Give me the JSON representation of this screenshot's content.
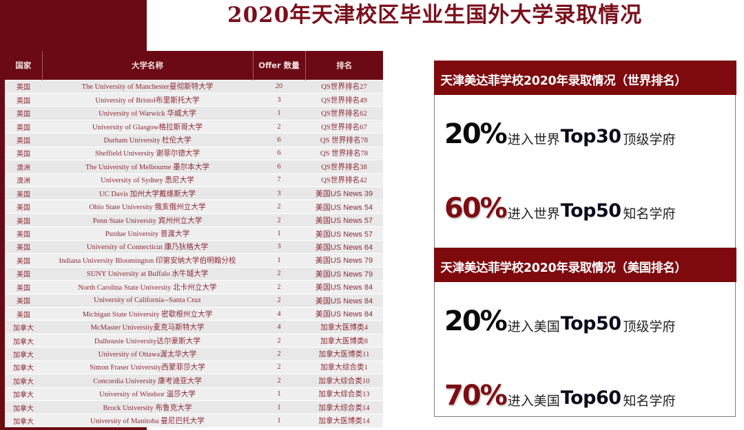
{
  "page": {
    "title": "2020年天津校区毕业生国外大学录取情况"
  },
  "table": {
    "headers": [
      "国家",
      "大学名称",
      "Offer 数量",
      "排名"
    ],
    "rows": [
      {
        "country": "英国",
        "university": "The University of Manchester曼彻斯特大学",
        "offers": "20",
        "rank": "QS世界排名27"
      },
      {
        "country": "英国",
        "university": "University of Bristol布里斯托大学",
        "offers": "3",
        "rank": "QS世界排名49"
      },
      {
        "country": "英国",
        "university": "University of Warwick 华威大学",
        "offers": "1",
        "rank": "QS世界排名62"
      },
      {
        "country": "英国",
        "university": "University of Glasgow格拉斯哥大学",
        "offers": "2",
        "rank": "QS世界排名67"
      },
      {
        "country": "英国",
        "university": "Durham University 杜伦大学",
        "offers": "6",
        "rank": "QS 世界排名78"
      },
      {
        "country": "英国",
        "university": "Sheffield University  谢菲尔德大学",
        "offers": "6",
        "rank": "QS 世界排名78"
      },
      {
        "country": "澳洲",
        "university": "The University of Melbourne 墨尔本大学",
        "offers": "6",
        "rank": "QS世界排名38"
      },
      {
        "country": "澳洲",
        "university": "University of Sydney 悉尼大学",
        "offers": "7",
        "rank": "QS世界排名42"
      },
      {
        "country": "美国",
        "university": "UC Davis 加州大学戴维斯大学",
        "offers": "3",
        "rank": "美国US News 39"
      },
      {
        "country": "美国",
        "university": "Ohio State University 俄亥俄州立大学",
        "offers": "2",
        "rank": "美国US News 54"
      },
      {
        "country": "美国",
        "university": "Penn State University 宾州州立大学",
        "offers": "2",
        "rank": "美国US News 57"
      },
      {
        "country": "美国",
        "university": "Purdue University 普渡大学",
        "offers": "1",
        "rank": "美国US News 57"
      },
      {
        "country": "美国",
        "university": "University of Connecticut 康乃狄格大学",
        "offers": "3",
        "rank": "美国US News 64"
      },
      {
        "country": "美国",
        "university": "Indiana University Bloomington 印第安纳大学伯明翰分校",
        "offers": "1",
        "rank": "美国US News 79"
      },
      {
        "country": "美国",
        "university": "SUNY University at Buffalo 水牛城大学",
        "offers": "2",
        "rank": "美国US News 79"
      },
      {
        "country": "美国",
        "university": "North Carolina State University 北卡州立大学",
        "offers": "2",
        "rank": "美国US News 84"
      },
      {
        "country": "美国",
        "university": "University of California--Santa Cruz",
        "offers": "2",
        "rank": "美国US News 84"
      },
      {
        "country": "美国",
        "university": "Michigan State University 密歇根州立大学",
        "offers": "4",
        "rank": "美国US News 84"
      },
      {
        "country": "加拿大",
        "university": "McMaster University麦克马斯特大学",
        "offers": "4",
        "rank": "加拿大医博类4"
      },
      {
        "country": "加拿大",
        "university": "Dalhousie University达尔豪斯大学",
        "offers": "2",
        "rank": "加拿大医博类8"
      },
      {
        "country": "加拿大",
        "university": "University of Ottawa渥太华大学",
        "offers": "2",
        "rank": "加拿大医博类11"
      },
      {
        "country": "加拿大",
        "university": "Simon Fraser University西蒙菲莎大学",
        "offers": "2",
        "rank": "加拿大综合类1"
      },
      {
        "country": "加拿大",
        "university": "Concordia University 康考迪亚大学",
        "offers": "2",
        "rank": "加拿大综合类10"
      },
      {
        "country": "加拿大",
        "university": "University of Windsor 温莎大学",
        "offers": "1",
        "rank": "加拿大综合类13"
      },
      {
        "country": "加拿大",
        "university": "Brock University 布鲁克大学",
        "offers": "1",
        "rank": "加拿大综合类14"
      },
      {
        "country": "加拿大",
        "university": "University of Manitoba 曼尼巴托大学",
        "offers": "1",
        "rank": "加拿大医博类14"
      }
    ]
  },
  "stats": {
    "world": {
      "header": "天津美达菲学校2020年录取情况（世界排名）",
      "lines": [
        {
          "pct": "20%",
          "pre": "进入世界",
          "top": "Top30",
          "post": "顶级学府",
          "color": "#0a0a0a"
        },
        {
          "pct": "60%",
          "pre": "进入世界",
          "top": "Top50",
          "post": "知名学府",
          "color": "#7c0d12"
        }
      ]
    },
    "us": {
      "header": "天津美达菲学校2020年录取情况（美国排名）",
      "lines": [
        {
          "pct": "20%",
          "pre": "进入美国",
          "top": "Top50",
          "post": "顶级学府",
          "color": "#0a0a0a"
        },
        {
          "pct": "70%",
          "pre": "进入美国",
          "top": "Top60",
          "post": "知名学府",
          "color": "#7c0d12"
        }
      ]
    }
  },
  "colors": {
    "crimson": "#6b0a14",
    "header_red": "#7f0a0e",
    "table_text": "#8a2a36"
  }
}
